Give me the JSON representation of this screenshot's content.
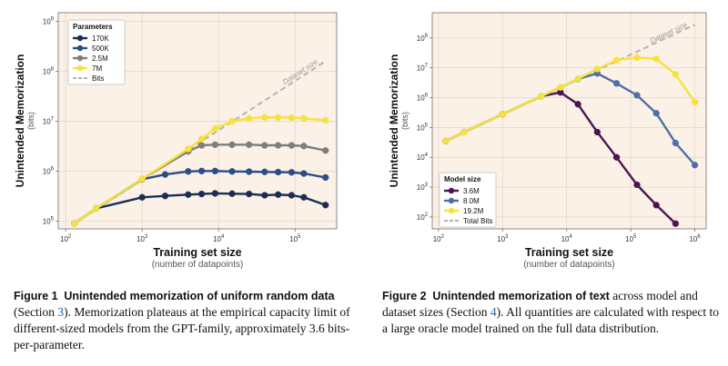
{
  "figures": [
    {
      "caption": {
        "label": "Figure 1",
        "title": "Unintended memorization of uniform random data",
        "text_before_ref": "(Section ",
        "ref": "3",
        "text_after_ref": "). Memorization plateaus at the empirical capacity limit of different-sized models from the GPT-family, approximately 3.6 bits-per-parameter."
      },
      "chart_data": {
        "type": "line",
        "log_x": true,
        "log_y": true,
        "xlim": [
          80,
          350000
        ],
        "ylim": [
          70000,
          1500000000
        ],
        "xticks": [
          100,
          1000,
          10000,
          100000
        ],
        "xtick_labels": [
          "10^2",
          "10^3",
          "10^4",
          "10^5"
        ],
        "yticks": [
          100000,
          1000000,
          10000000,
          100000000,
          1000000000
        ],
        "ytick_labels": [
          "10^5",
          "10^6",
          "10^7",
          "10^8",
          "10^9"
        ],
        "xlabel": "Training set size",
        "xlabel_sub": "(number of datapoints)",
        "ylabel": "Unintended Memorization",
        "ylabel_sub": "(bits)",
        "diagonal_label": "Dataset size",
        "grid": true,
        "legend": {
          "title": "Parameters",
          "placement": "top-left"
        },
        "dataset_line": {
          "name": "Bits",
          "color": "#b3b3b3",
          "points": [
            [
              130,
              90000
            ],
            [
              250000,
              160000000
            ]
          ]
        },
        "series": [
          {
            "name": "170K",
            "color": "#1c2d55",
            "points": [
              [
                130,
                90000
              ],
              [
                250,
                180000
              ],
              [
                1000,
                300000
              ],
              [
                2000,
                320000
              ],
              [
                4000,
                340000
              ],
              [
                6000,
                350000
              ],
              [
                9000,
                360000
              ],
              [
                15000,
                355000
              ],
              [
                25000,
                350000
              ],
              [
                40000,
                330000
              ],
              [
                60000,
                340000
              ],
              [
                90000,
                330000
              ],
              [
                130000,
                300000
              ],
              [
                250000,
                210000
              ]
            ]
          },
          {
            "name": "500K",
            "color": "#2d4c8a",
            "points": [
              [
                130,
                90000
              ],
              [
                250,
                180000
              ],
              [
                1000,
                690000
              ],
              [
                2000,
                860000
              ],
              [
                4000,
                990000
              ],
              [
                6000,
                1010000
              ],
              [
                9000,
                1010000
              ],
              [
                15000,
                990000
              ],
              [
                25000,
                980000
              ],
              [
                40000,
                970000
              ],
              [
                60000,
                960000
              ],
              [
                90000,
                950000
              ],
              [
                130000,
                900000
              ],
              [
                250000,
                750000
              ]
            ]
          },
          {
            "name": "2.5M",
            "color": "#7e7e7e",
            "points": [
              [
                130,
                90000
              ],
              [
                250,
                180000
              ],
              [
                1000,
                700000
              ],
              [
                4000,
                2500000
              ],
              [
                6000,
                3300000
              ],
              [
                9000,
                3400000
              ],
              [
                15000,
                3400000
              ],
              [
                25000,
                3400000
              ],
              [
                40000,
                3300000
              ],
              [
                60000,
                3300000
              ],
              [
                90000,
                3300000
              ],
              [
                130000,
                3200000
              ],
              [
                250000,
                2600000
              ]
            ]
          },
          {
            "name": "7M",
            "color": "#f5e23c",
            "points": [
              [
                130,
                90000
              ],
              [
                250,
                180000
              ],
              [
                1000,
                700000
              ],
              [
                4000,
                2800000
              ],
              [
                6000,
                4400000
              ],
              [
                9000,
                7200000
              ],
              [
                15000,
                10000000
              ],
              [
                25000,
                11500000
              ],
              [
                40000,
                12000000
              ],
              [
                60000,
                12000000
              ],
              [
                90000,
                11800000
              ],
              [
                130000,
                11500000
              ],
              [
                250000,
                10500000
              ]
            ]
          }
        ]
      }
    },
    {
      "caption": {
        "label": "Figure 2",
        "title": "Unintended memorization of text",
        "text_before_ref": " across model and dataset sizes (Section ",
        "ref": "4",
        "text_after_ref": "). All quantities are calculated with respect to a large oracle model trained on the full data distribution."
      },
      "chart_data": {
        "type": "line",
        "log_x": true,
        "log_y": true,
        "xlim": [
          80,
          1500000
        ],
        "ylim": [
          40,
          700000000
        ],
        "xticks": [
          100,
          1000,
          10000,
          100000,
          1000000
        ],
        "xtick_labels": [
          "10^2",
          "10^3",
          "10^4",
          "10^5",
          "10^6"
        ],
        "yticks": [
          100,
          1000,
          10000,
          100000,
          1000000,
          10000000,
          100000000
        ],
        "ytick_labels": [
          "10^2",
          "10^3",
          "10^4",
          "10^5",
          "10^6",
          "10^7",
          "10^8"
        ],
        "xlabel": "Training set size",
        "xlabel_sub": "(number of datapoints)",
        "ylabel": "Unintended Memorization",
        "ylabel_sub": "(bits)",
        "diagonal_label": "Dataset size",
        "grid": true,
        "legend": {
          "title": "Model size",
          "placement": "bottom-left"
        },
        "dataset_line": {
          "name": "Total Bits",
          "color": "#b3b3b3",
          "points": [
            [
              130,
              35000
            ],
            [
              1000000,
              280000000
            ]
          ]
        },
        "series": [
          {
            "name": "3.6M",
            "color": "#4a1555",
            "points": [
              [
                130,
                35000
              ],
              [
                250,
                70000
              ],
              [
                1000,
                280000
              ],
              [
                4000,
                1100000
              ],
              [
                8000,
                1500000
              ],
              [
                15000,
                600000
              ],
              [
                30000,
                70000
              ],
              [
                60000,
                10000
              ],
              [
                125000,
                1200
              ],
              [
                250000,
                250
              ],
              [
                500000,
                60
              ]
            ]
          },
          {
            "name": "8.0M",
            "color": "#4d70a8",
            "points": [
              [
                130,
                35000
              ],
              [
                250,
                70000
              ],
              [
                1000,
                280000
              ],
              [
                4000,
                1100000
              ],
              [
                8000,
                2200000
              ],
              [
                15000,
                4200000
              ],
              [
                30000,
                6500000
              ],
              [
                60000,
                3000000
              ],
              [
                125000,
                1200000
              ],
              [
                250000,
                300000
              ],
              [
                500000,
                30000
              ],
              [
                1000000,
                5500
              ]
            ]
          },
          {
            "name": "19.2M",
            "color": "#f5e23c",
            "points": [
              [
                130,
                35000
              ],
              [
                250,
                70000
              ],
              [
                1000,
                280000
              ],
              [
                4000,
                1100000
              ],
              [
                8000,
                2200000
              ],
              [
                15000,
                4300000
              ],
              [
                30000,
                9000000
              ],
              [
                60000,
                18000000
              ],
              [
                125000,
                22000000
              ],
              [
                250000,
                20000000
              ],
              [
                500000,
                6000000
              ],
              [
                1000000,
                700000
              ]
            ]
          }
        ]
      }
    }
  ]
}
